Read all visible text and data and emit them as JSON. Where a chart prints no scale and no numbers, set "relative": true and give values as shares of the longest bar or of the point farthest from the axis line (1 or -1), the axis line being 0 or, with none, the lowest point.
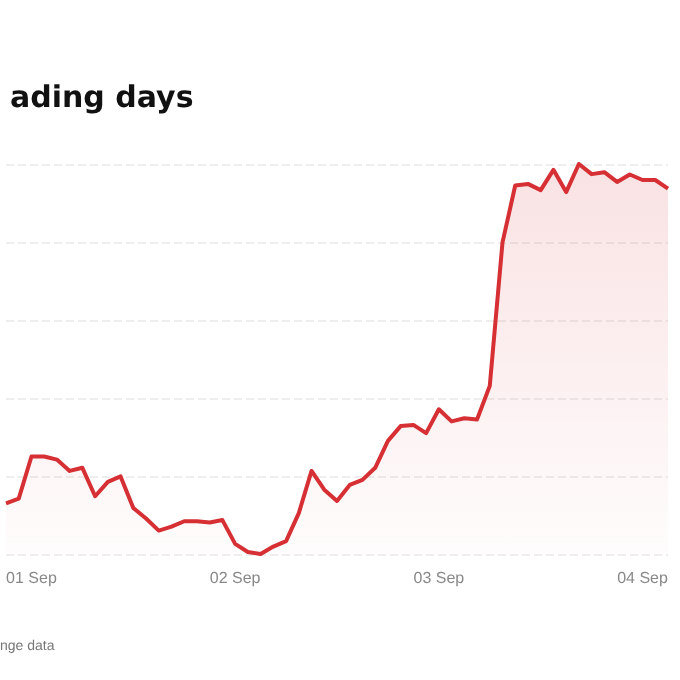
{
  "chart_data": {
    "type": "area",
    "title": "ading days",
    "annotations": [
      "nge data"
    ],
    "relative": true,
    "grid": "y",
    "marker": "none",
    "line_style": "solid",
    "categories": [
      null,
      null,
      "01 Sep",
      null,
      null,
      null,
      null,
      null,
      null,
      null,
      null,
      null,
      null,
      null,
      null,
      null,
      null,
      null,
      "02 Sep",
      null,
      null,
      null,
      null,
      null,
      null,
      null,
      null,
      null,
      null,
      null,
      null,
      null,
      null,
      null,
      "03 Sep",
      null,
      null,
      null,
      null,
      null,
      null,
      null,
      null,
      null,
      null,
      null,
      null,
      null,
      null,
      null,
      "04 Sep",
      null,
      null
    ],
    "series": [
      {
        "color": "#d62f34",
        "values": [
          0.13,
          0.142,
          0.25,
          0.25,
          0.242,
          0.213,
          0.221,
          0.148,
          0.185,
          0.199,
          0.118,
          0.091,
          0.06,
          0.07,
          0.084,
          0.084,
          0.081,
          0.087,
          0.026,
          0.005,
          0,
          0.019,
          0.033,
          0.105,
          0.213,
          0.165,
          0.136,
          0.177,
          0.19,
          0.221,
          0.29,
          0.328,
          0.331,
          0.31,
          0.371,
          0.34,
          0.348,
          0.345,
          0.431,
          0.799,
          0.945,
          0.949,
          0.933,
          0.985,
          0.928,
          1,
          0.974,
          0.979,
          0.954,
          0.973,
          0.959,
          0.959,
          0.937
        ]
      }
    ]
  }
}
